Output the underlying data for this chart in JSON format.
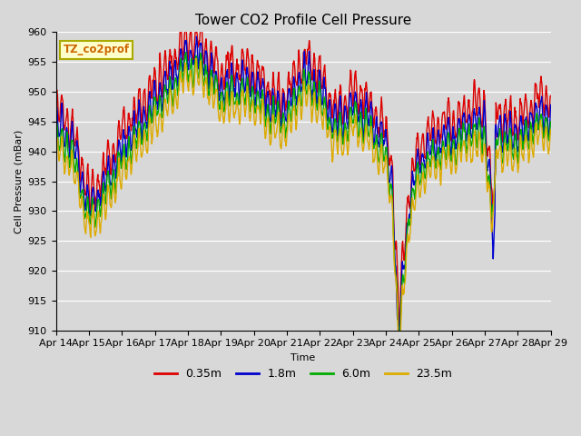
{
  "title": "Tower CO2 Profile Cell Pressure",
  "xlabel": "Time",
  "ylabel": "Cell Pressure (mBar)",
  "ylim": [
    910,
    960
  ],
  "xlim": [
    0,
    1
  ],
  "xtick_labels": [
    "Apr 14",
    "Apr 15",
    "Apr 16",
    "Apr 17",
    "Apr 18",
    "Apr 19",
    "Apr 20",
    "Apr 21",
    "Apr 22",
    "Apr 23",
    "Apr 24",
    "Apr 25",
    "Apr 26",
    "Apr 27",
    "Apr 28",
    "Apr 29"
  ],
  "series_colors": [
    "#dd0000",
    "#0000cc",
    "#00aa00",
    "#ddaa00"
  ],
  "series_labels": [
    "0.35m",
    "1.8m",
    "6.0m",
    "23.5m"
  ],
  "annotation_text": "TZ_co2prof",
  "annotation_bg": "#ffffcc",
  "annotation_edge": "#aaaa00",
  "background_color": "#d8d8d8",
  "grid_color": "#ffffff",
  "title_fontsize": 11,
  "axis_fontsize": 8,
  "tick_fontsize": 8,
  "legend_fontsize": 9,
  "linewidth": 1.0
}
